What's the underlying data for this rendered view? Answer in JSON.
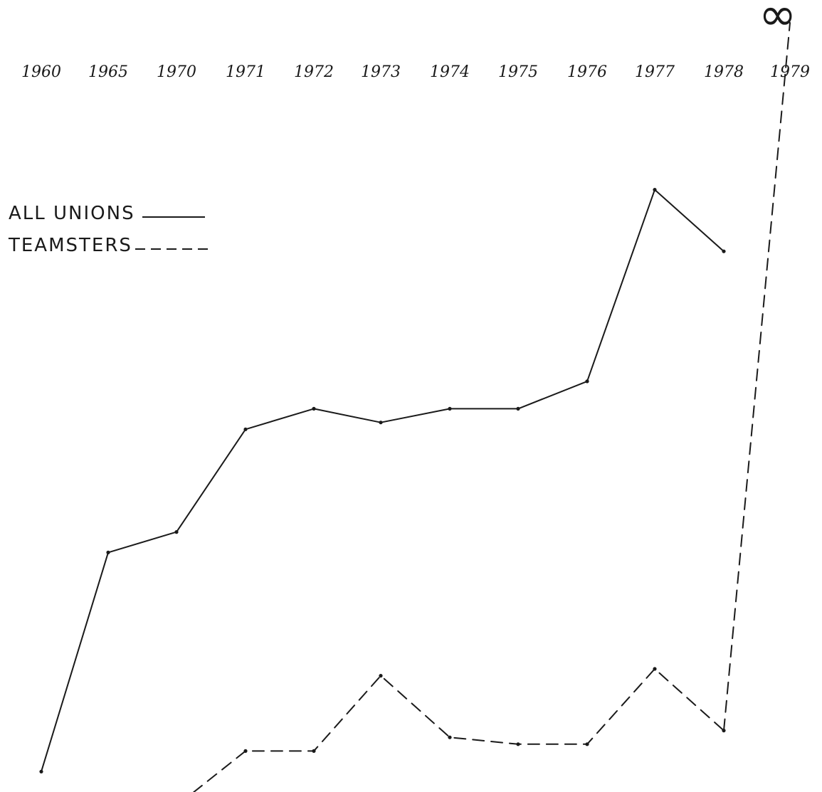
{
  "chart_data": {
    "type": "line",
    "categories": [
      "1960",
      "1965",
      "1970",
      "1971",
      "1972",
      "1973",
      "1974",
      "1975",
      "1976",
      "1977",
      "1978",
      "1979"
    ],
    "top_mark": "∞",
    "series": [
      {
        "name": "All Unions",
        "line_style": "solid",
        "color": "#1a1a1a",
        "values": [
          0.06,
          0.38,
          0.41,
          0.56,
          0.59,
          0.57,
          0.59,
          0.59,
          0.63,
          0.91,
          0.82,
          null
        ]
      },
      {
        "name": "Teamsters",
        "line_style": "dashed",
        "color": "#1a1a1a",
        "values": [
          null,
          -0.02,
          0.01,
          0.09,
          0.09,
          0.2,
          0.11,
          0.1,
          0.1,
          0.21,
          0.12,
          null
        ],
        "extension_to_top": {
          "from_category": "1978",
          "to_mark": "∞"
        }
      }
    ],
    "legend": {
      "position": "left",
      "entries": [
        "All Unions",
        "Teamsters"
      ]
    },
    "xaxis_position": "top",
    "yaxis_shown": false,
    "grid": false
  },
  "legend": {
    "all_unions_label": "ALL UNIONS",
    "teamsters_label": "TEAMSTERS"
  }
}
